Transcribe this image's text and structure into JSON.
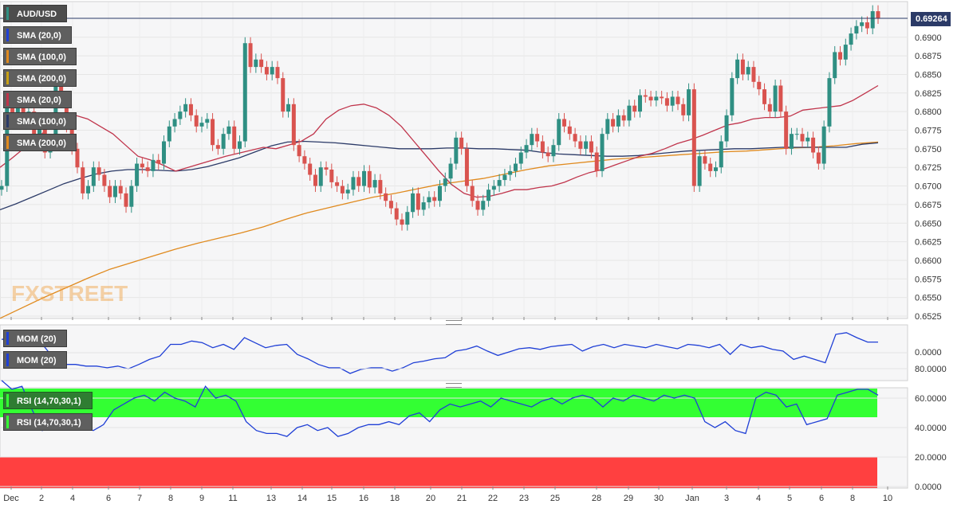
{
  "symbol": "AUD/USD",
  "watermark": "FXSTREET",
  "price_tag": "0.69264",
  "indicator_labels": {
    "sma20": "SMA (20,0)",
    "sma100": "SMA (100,0)",
    "sma200": "SMA (200,0)",
    "mom": "MOM (20)",
    "rsi": "RSI (14,70,30,1)"
  },
  "colors": {
    "bull": "#2f8f83",
    "bear": "#d9534f",
    "sma20": "#c0344b",
    "sma100": "#2b3a67",
    "sma200": "#e08a1e",
    "mom": "#1f3fd6",
    "rsi": "#1f3fd6",
    "overbought": "#33ff33",
    "oversold": "#ff4040"
  },
  "chart_data": {
    "type": "candlestick",
    "instrument": "AUD/USD",
    "timeframe": "4h",
    "x_ticks": [
      "Dec",
      "2",
      "4",
      "6",
      "7",
      "8",
      "9",
      "11",
      "13",
      "14",
      "15",
      "16",
      "18",
      "20",
      "21",
      "22",
      "23",
      "25",
      "28",
      "29",
      "30",
      "Jan",
      "3",
      "4",
      "5",
      "6",
      "8",
      "10"
    ],
    "y_ticks": [
      "0.6525",
      "0.6550",
      "0.6575",
      "0.6600",
      "0.6625",
      "0.6650",
      "0.6675",
      "0.6700",
      "0.6725",
      "0.6750",
      "0.6775",
      "0.6800",
      "0.6825",
      "0.6850",
      "0.6875",
      "0.6900"
    ],
    "ylim": [
      0.6515,
      0.694
    ],
    "last_price": 0.69264,
    "sma20": [
      0.6725,
      0.6738,
      0.6752,
      0.6765,
      0.678,
      0.6792,
      0.6795,
      0.679,
      0.678,
      0.677,
      0.6755,
      0.674,
      0.6735,
      0.6728,
      0.672,
      0.6725,
      0.673,
      0.6735,
      0.674,
      0.6744,
      0.6748,
      0.6752,
      0.675,
      0.6755,
      0.676,
      0.677,
      0.679,
      0.6802,
      0.6808,
      0.681,
      0.6805,
      0.6795,
      0.678,
      0.676,
      0.674,
      0.672,
      0.6702,
      0.669,
      0.6685,
      0.6686,
      0.669,
      0.6695,
      0.6695,
      0.6698,
      0.67,
      0.6705,
      0.6712,
      0.6718,
      0.6722,
      0.6728,
      0.6734,
      0.674,
      0.6744,
      0.675,
      0.6757,
      0.6762,
      0.6768,
      0.6775,
      0.6782,
      0.6785,
      0.679,
      0.6792,
      0.6792,
      0.6794,
      0.6802,
      0.6804,
      0.6806,
      0.6808,
      0.6815,
      0.6825,
      0.6835
    ],
    "sma100": [
      0.6668,
      0.6676,
      0.6685,
      0.6694,
      0.6703,
      0.671,
      0.6716,
      0.672,
      0.6722,
      0.6722,
      0.6721,
      0.672,
      0.6722,
      0.6726,
      0.6732,
      0.6738,
      0.6746,
      0.6754,
      0.6759,
      0.676,
      0.6759,
      0.6758,
      0.6756,
      0.6754,
      0.6752,
      0.675,
      0.675,
      0.675,
      0.6751,
      0.6751,
      0.675,
      0.675,
      0.6749,
      0.6748,
      0.6745,
      0.6743,
      0.6742,
      0.6741,
      0.674,
      0.674,
      0.6741,
      0.6743,
      0.6745,
      0.6747,
      0.6748,
      0.6749,
      0.675,
      0.675,
      0.6751,
      0.6752,
      0.6752,
      0.6752,
      0.6752,
      0.6752,
      0.6756,
      0.6758
    ],
    "sma200": [
      0.6522,
      0.6536,
      0.655,
      0.6563,
      0.6576,
      0.6588,
      0.6597,
      0.6606,
      0.6615,
      0.6623,
      0.663,
      0.6637,
      0.6645,
      0.6655,
      0.6664,
      0.6671,
      0.6678,
      0.6685,
      0.669,
      0.6696,
      0.6702,
      0.6706,
      0.671,
      0.6716,
      0.6722,
      0.6727,
      0.673,
      0.6733,
      0.6736,
      0.6738,
      0.674,
      0.6742,
      0.6744,
      0.6746,
      0.6747,
      0.6749,
      0.6751,
      0.6752,
      0.6754,
      0.6757,
      0.6759
    ],
    "momentum": [
      0.004,
      0.0042,
      0.0055,
      0.0045,
      0.002,
      -0.002,
      -0.0035,
      -0.0035,
      -0.004,
      -0.004,
      -0.0045,
      -0.004,
      -0.0048,
      -0.0035,
      -0.002,
      -0.001,
      0.0025,
      0.0025,
      0.0035,
      0.003,
      0.0015,
      0.0025,
      0.001,
      0.0045,
      0.003,
      0.0015,
      0.0022,
      0.0025,
      -0.0005,
      -0.0018,
      -0.0035,
      -0.0045,
      -0.0045,
      -0.0062,
      -0.005,
      -0.0045,
      -0.0045,
      -0.0055,
      -0.0045,
      -0.003,
      -0.0025,
      -0.0018,
      -0.0015,
      0.0005,
      0.001,
      0.002,
      0.0005,
      -0.0008,
      0.0002,
      0.0012,
      0.0015,
      0.001,
      0.0018,
      0.0022,
      0.0025,
      0.0005,
      0.0018,
      0.0025,
      0.0015,
      0.0025,
      0.002,
      0.0015,
      0.0025,
      0.0018,
      0.0012,
      0.0025,
      0.0022,
      0.0015,
      0.0025,
      -0.0005,
      0.0025,
      0.0015,
      0.002,
      0.001,
      0.0005,
      -0.002,
      -0.001,
      -0.002,
      -0.003,
      0.0055,
      0.006,
      0.0045,
      0.0032,
      0.0032
    ],
    "rsi": [
      72,
      66,
      68,
      52,
      38,
      42,
      40,
      44,
      40,
      38,
      42,
      52,
      56,
      60,
      62,
      58,
      64,
      60,
      58,
      54,
      68,
      60,
      62,
      58,
      44,
      38,
      36,
      36,
      34,
      40,
      42,
      38,
      40,
      34,
      36,
      40,
      42,
      42,
      44,
      42,
      48,
      50,
      44,
      52,
      56,
      54,
      56,
      58,
      54,
      60,
      58,
      56,
      54,
      58,
      60,
      56,
      60,
      62,
      60,
      54,
      60,
      58,
      62,
      60,
      58,
      62,
      60,
      62,
      60,
      44,
      40,
      44,
      38,
      36,
      60,
      64,
      62,
      54,
      56,
      42,
      44,
      46,
      62,
      64,
      66,
      66,
      62
    ]
  }
}
